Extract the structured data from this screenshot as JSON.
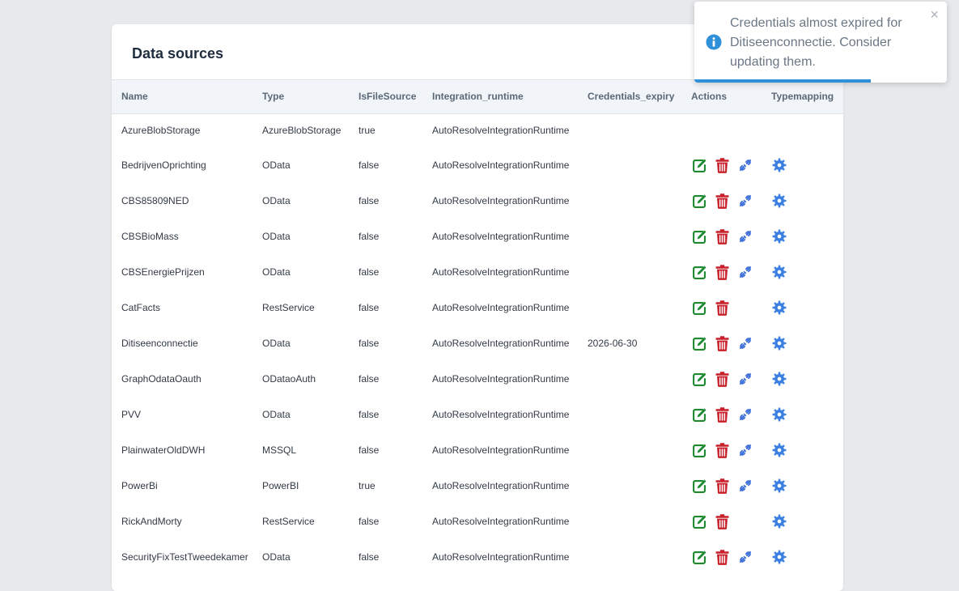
{
  "page": {
    "title": "Data sources"
  },
  "table": {
    "columns": [
      "Name",
      "Type",
      "IsFileSource",
      "Integration_runtime",
      "Credentials_expiry",
      "Actions",
      "Typemapping"
    ],
    "rows": [
      {
        "name": "AzureBlobStorage",
        "type": "AzureBlobStorage",
        "is_file_source": "true",
        "integration_runtime": "AutoResolveIntegrationRuntime",
        "credentials_expiry": "",
        "actions": [],
        "typemapping": false
      },
      {
        "name": "BedrijvenOprichting",
        "type": "OData",
        "is_file_source": "false",
        "integration_runtime": "AutoResolveIntegrationRuntime",
        "credentials_expiry": "",
        "actions": [
          "edit",
          "delete",
          "credentials"
        ],
        "typemapping": true
      },
      {
        "name": "CBS85809NED",
        "type": "OData",
        "is_file_source": "false",
        "integration_runtime": "AutoResolveIntegrationRuntime",
        "credentials_expiry": "",
        "actions": [
          "edit",
          "delete",
          "credentials"
        ],
        "typemapping": true
      },
      {
        "name": "CBSBioMass",
        "type": "OData",
        "is_file_source": "false",
        "integration_runtime": "AutoResolveIntegrationRuntime",
        "credentials_expiry": "",
        "actions": [
          "edit",
          "delete",
          "credentials"
        ],
        "typemapping": true
      },
      {
        "name": "CBSEnergiePrijzen",
        "type": "OData",
        "is_file_source": "false",
        "integration_runtime": "AutoResolveIntegrationRuntime",
        "credentials_expiry": "",
        "actions": [
          "edit",
          "delete",
          "credentials"
        ],
        "typemapping": true
      },
      {
        "name": "CatFacts",
        "type": "RestService",
        "is_file_source": "false",
        "integration_runtime": "AutoResolveIntegrationRuntime",
        "credentials_expiry": "",
        "actions": [
          "edit",
          "delete"
        ],
        "typemapping": true
      },
      {
        "name": "Ditiseenconnectie",
        "type": "OData",
        "is_file_source": "false",
        "integration_runtime": "AutoResolveIntegrationRuntime",
        "credentials_expiry": "2026-06-30",
        "actions": [
          "edit",
          "delete",
          "credentials"
        ],
        "typemapping": true
      },
      {
        "name": "GraphOdataOauth",
        "type": "ODataoAuth",
        "is_file_source": "false",
        "integration_runtime": "AutoResolveIntegrationRuntime",
        "credentials_expiry": "",
        "actions": [
          "edit",
          "delete",
          "credentials"
        ],
        "typemapping": true
      },
      {
        "name": "PVV",
        "type": "OData",
        "is_file_source": "false",
        "integration_runtime": "AutoResolveIntegrationRuntime",
        "credentials_expiry": "",
        "actions": [
          "edit",
          "delete",
          "credentials"
        ],
        "typemapping": true
      },
      {
        "name": "PlainwaterOldDWH",
        "type": "MSSQL",
        "is_file_source": "false",
        "integration_runtime": "AutoResolveIntegrationRuntime",
        "credentials_expiry": "",
        "actions": [
          "edit",
          "delete",
          "credentials"
        ],
        "typemapping": true
      },
      {
        "name": "PowerBi",
        "type": "PowerBI",
        "is_file_source": "true",
        "integration_runtime": "AutoResolveIntegrationRuntime",
        "credentials_expiry": "",
        "actions": [
          "edit",
          "delete",
          "credentials"
        ],
        "typemapping": true
      },
      {
        "name": "RickAndMorty",
        "type": "RestService",
        "is_file_source": "false",
        "integration_runtime": "AutoResolveIntegrationRuntime",
        "credentials_expiry": "",
        "actions": [
          "edit",
          "delete"
        ],
        "typemapping": true
      },
      {
        "name": "SecurityFixTestTweedekamer",
        "type": "OData",
        "is_file_source": "false",
        "integration_runtime": "AutoResolveIntegrationRuntime",
        "credentials_expiry": "",
        "actions": [
          "edit",
          "delete",
          "credentials"
        ],
        "typemapping": true
      }
    ]
  },
  "toast": {
    "message": "Credentials almost expired for Ditiseenconnectie. Consider updating them.",
    "close_glyph": "×",
    "icon": "info-circle-icon",
    "progress": 0.7
  },
  "icons": {
    "edit": "edit-icon",
    "delete": "trash-icon",
    "credentials": "key-link-icon",
    "typemapping": "gear-icon"
  },
  "colors": {
    "edit": "#1e8a2f",
    "delete": "#c8202a",
    "credentials": "#3b6fd8",
    "typemapping": "#3b7fe0",
    "toast_info": "#2e90d8"
  }
}
